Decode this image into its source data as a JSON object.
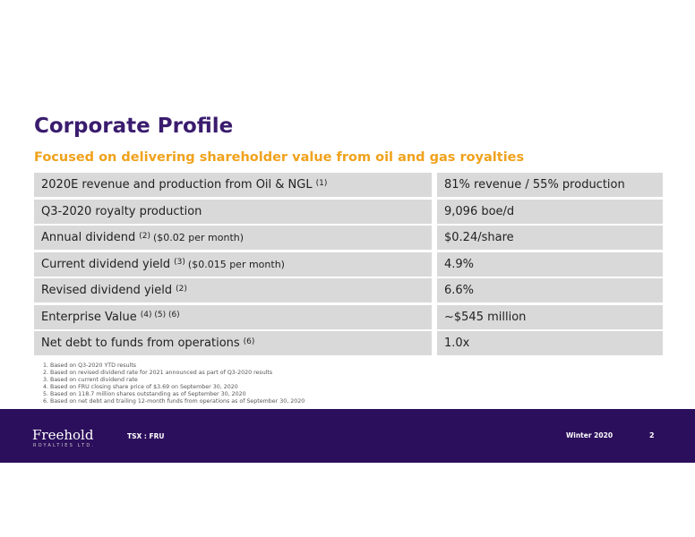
{
  "header": {
    "title": "Corporate Profile",
    "subtitle": "Focused on delivering shareholder value from oil and gas royalties"
  },
  "table": {
    "rows": [
      {
        "label": "2020E revenue and production from Oil & NGL",
        "note": "(1)",
        "value": "81% revenue / 55% production"
      },
      {
        "label": "Q3-2020 royalty production",
        "value": "9,096 boe/d"
      },
      {
        "label": "Annual dividend",
        "note": "(2)",
        "detail": "($0.02 per month)",
        "value": "$0.24/share"
      },
      {
        "label": "Current dividend yield",
        "note": "(3)",
        "detail": "($0.015 per month)",
        "value": "4.9%"
      },
      {
        "label": "Revised dividend yield",
        "note": "(2)",
        "value": "6.6%"
      },
      {
        "label": "Enterprise Value",
        "note": "(4) (5) (6)",
        "value": "~$545 million"
      },
      {
        "label": "Net debt to funds from operations",
        "note": "(6)",
        "value": "1.0x"
      }
    ]
  },
  "footnotes": [
    "Based on Q3-2020 YTD results",
    "Based on revised dividend rate for 2021 announced as part of Q3-2020 results",
    "Based on current dividend rate",
    "Based on FRU closing share price of $3.69 on September 30, 2020",
    "Based on 118.7 million shares outstanding as of September 30, 2020",
    "Based on net debt and trailing 12-month funds from operations as of September 30, 2020"
  ],
  "footer": {
    "logo": "Freehold",
    "logo_sub": "ROYALTIES LTD.",
    "ticker": "TSX : FRU",
    "date": "Winter 2020",
    "page": "2"
  }
}
